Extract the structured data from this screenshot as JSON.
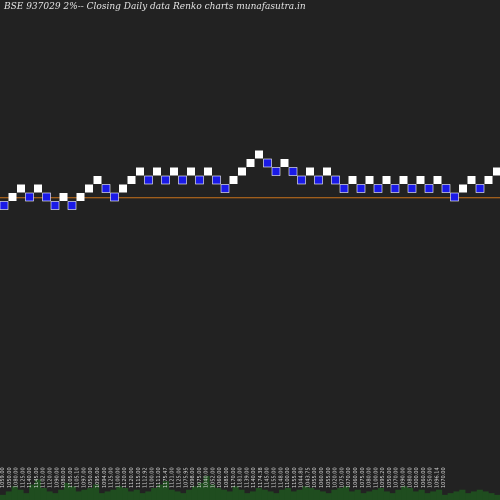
{
  "chart_data": {
    "type": "renko",
    "title": "BSE 937029 2%-- Closing Daily data Renko charts munafasutra.in",
    "bricks": [
      {
        "dir": "down",
        "value": 1060
      },
      {
        "dir": "up",
        "value": 1080
      },
      {
        "dir": "up",
        "value": 1100
      },
      {
        "dir": "down",
        "value": 1080
      },
      {
        "dir": "up",
        "value": 1100
      },
      {
        "dir": "down",
        "value": 1080
      },
      {
        "dir": "down",
        "value": 1060
      },
      {
        "dir": "up",
        "value": 1080
      },
      {
        "dir": "down",
        "value": 1060
      },
      {
        "dir": "up",
        "value": 1080
      },
      {
        "dir": "up",
        "value": 1100
      },
      {
        "dir": "up",
        "value": 1120
      },
      {
        "dir": "down",
        "value": 1100
      },
      {
        "dir": "down",
        "value": 1080
      },
      {
        "dir": "up",
        "value": 1100
      },
      {
        "dir": "up",
        "value": 1120
      },
      {
        "dir": "up",
        "value": 1140
      },
      {
        "dir": "down",
        "value": 1120
      },
      {
        "dir": "up",
        "value": 1140
      },
      {
        "dir": "down",
        "value": 1120
      },
      {
        "dir": "up",
        "value": 1140
      },
      {
        "dir": "down",
        "value": 1120
      },
      {
        "dir": "up",
        "value": 1140
      },
      {
        "dir": "down",
        "value": 1120
      },
      {
        "dir": "up",
        "value": 1140
      },
      {
        "dir": "down",
        "value": 1120
      },
      {
        "dir": "down",
        "value": 1100
      },
      {
        "dir": "up",
        "value": 1120
      },
      {
        "dir": "up",
        "value": 1140
      },
      {
        "dir": "up",
        "value": 1160
      },
      {
        "dir": "up",
        "value": 1180
      },
      {
        "dir": "down",
        "value": 1160
      },
      {
        "dir": "down",
        "value": 1140
      },
      {
        "dir": "up",
        "value": 1160
      },
      {
        "dir": "down",
        "value": 1140
      },
      {
        "dir": "down",
        "value": 1120
      },
      {
        "dir": "up",
        "value": 1140
      },
      {
        "dir": "down",
        "value": 1120
      },
      {
        "dir": "up",
        "value": 1140
      },
      {
        "dir": "down",
        "value": 1120
      },
      {
        "dir": "down",
        "value": 1100
      },
      {
        "dir": "up",
        "value": 1120
      },
      {
        "dir": "down",
        "value": 1100
      },
      {
        "dir": "up",
        "value": 1120
      },
      {
        "dir": "down",
        "value": 1100
      },
      {
        "dir": "up",
        "value": 1120
      },
      {
        "dir": "down",
        "value": 1100
      },
      {
        "dir": "up",
        "value": 1120
      },
      {
        "dir": "down",
        "value": 1100
      },
      {
        "dir": "up",
        "value": 1120
      },
      {
        "dir": "down",
        "value": 1100
      },
      {
        "dir": "up",
        "value": 1120
      },
      {
        "dir": "down",
        "value": 1100
      },
      {
        "dir": "down",
        "value": 1080
      },
      {
        "dir": "up",
        "value": 1100
      },
      {
        "dir": "up",
        "value": 1120
      },
      {
        "dir": "down",
        "value": 1100
      },
      {
        "dir": "up",
        "value": 1120
      },
      {
        "dir": "up",
        "value": 1140
      }
    ],
    "reference_line": 1090,
    "ylim": [
      1040,
      1200
    ],
    "x_tick_labels": [
      "1059.00",
      "1050.00",
      "1080.00",
      "1125.00",
      "1140.00",
      "1145.00",
      "1102.00",
      "1120.00",
      "1090.00",
      "1080.00",
      "1105.00",
      "1105.10",
      "1097.00",
      "1050.00",
      "1095.00",
      "1094.00",
      "1125.00",
      "1100.00",
      "1120.00",
      "1120.00",
      "1115.00",
      "1112.92",
      "1100.00",
      "1111.00",
      "1175.47",
      "1121.00",
      "1125.00",
      "1075.95",
      "1098.00",
      "1075.00",
      "1040.00",
      "1052.00",
      "1060.00",
      "1085.00",
      "1170.00",
      "1181.00",
      "1139.00",
      "1140.00",
      "1174.38",
      "1145.00",
      "1155.00",
      "1148.00",
      "1100.00",
      "1155.00",
      "1044.80",
      "1043.75",
      "1055.00",
      "1060.00",
      "1055.00",
      "1020.00",
      "1075.00",
      "1070.00",
      "1060.00",
      "1075.00",
      "1080.00",
      "1100.00",
      "1095.20",
      "1050.00",
      "1070.00",
      "1090.00",
      "1080.00",
      "1000.00",
      "1060.00",
      "1050.00",
      "1096.14",
      "1070.00"
    ],
    "volumes": [
      3,
      5,
      8,
      6,
      4,
      9,
      12,
      7,
      5,
      4,
      6,
      10,
      8,
      5,
      6,
      7,
      9,
      4,
      5,
      6,
      8,
      7,
      5,
      6,
      4,
      5,
      7,
      9,
      11,
      6,
      5,
      4,
      6,
      8,
      10,
      14,
      9,
      7,
      6,
      5,
      8,
      6,
      4,
      5,
      7,
      6,
      5,
      4,
      6,
      7,
      5,
      6,
      8,
      7,
      6,
      5,
      4,
      6,
      7,
      8,
      5,
      6,
      4,
      5,
      6,
      7,
      5,
      4,
      6,
      8,
      7,
      5,
      6,
      4,
      5,
      6,
      3,
      4,
      5,
      6,
      4,
      5,
      6,
      5,
      4,
      3
    ]
  }
}
